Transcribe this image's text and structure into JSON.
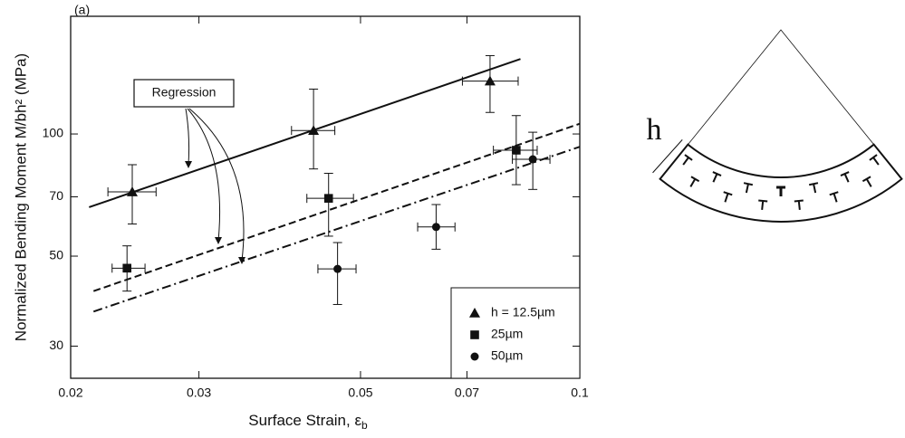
{
  "chart_data": {
    "type": "scatter",
    "panel_label": "(a)",
    "xlabel": "Surface Strain,  ε",
    "xlabel_subscript": "b",
    "ylabel": "Normalized Bending Moment  M/bh² (MPa)",
    "xscale": "log",
    "yscale": "log",
    "xlim": [
      0.02,
      0.1
    ],
    "ylim": [
      25,
      195
    ],
    "xticks": [
      0.02,
      0.03,
      0.05,
      0.07,
      0.1
    ],
    "yticks": [
      30,
      50,
      70,
      100
    ],
    "legend": "lower right",
    "annotation": "Regression",
    "series": [
      {
        "name": "h = 12.5µm",
        "marker": "triangle",
        "color": "#111",
        "x": [
          0.0243,
          0.0431,
          0.0753
        ],
        "values": [
          72,
          102,
          135
        ],
        "x_low": [
          0.0225,
          0.0402,
          0.069
        ],
        "x_high": [
          0.0262,
          0.0461,
          0.0823
        ],
        "y_low": [
          60,
          82,
          113
        ],
        "y_high": [
          84,
          129,
          156
        ]
      },
      {
        "name": "25µm",
        "marker": "square",
        "color": "#111",
        "x": [
          0.0239,
          0.0452,
          0.0818
        ],
        "values": [
          46.7,
          69.4,
          91.2
        ],
        "x_low": [
          0.0228,
          0.0422,
          0.0761
        ],
        "x_high": [
          0.0253,
          0.0489,
          0.0874
        ],
        "y_low": [
          41,
          56,
          75
        ],
        "y_high": [
          53,
          80,
          111
        ]
      },
      {
        "name": "50µm",
        "marker": "circle",
        "color": "#111",
        "x": [
          0.0465,
          0.0635,
          0.0862
        ],
        "values": [
          46.5,
          59,
          86.6
        ],
        "x_low": [
          0.0437,
          0.0599,
          0.0808
        ],
        "x_high": [
          0.0493,
          0.0674,
          0.091
        ],
        "y_low": [
          38,
          52,
          73
        ],
        "y_high": [
          54,
          67,
          101
        ]
      }
    ],
    "regression_lines": [
      {
        "style": "solid",
        "x": [
          0.0212,
          0.0829
        ],
        "values": [
          66,
          153
        ]
      },
      {
        "style": "dashed",
        "x": [
          0.0215,
          0.1
        ],
        "values": [
          41,
          106
        ]
      },
      {
        "style": "dashdot",
        "x": [
          0.0215,
          0.1
        ],
        "values": [
          36.5,
          93
        ]
      }
    ]
  },
  "diagram": {
    "thickness_label": "h"
  }
}
